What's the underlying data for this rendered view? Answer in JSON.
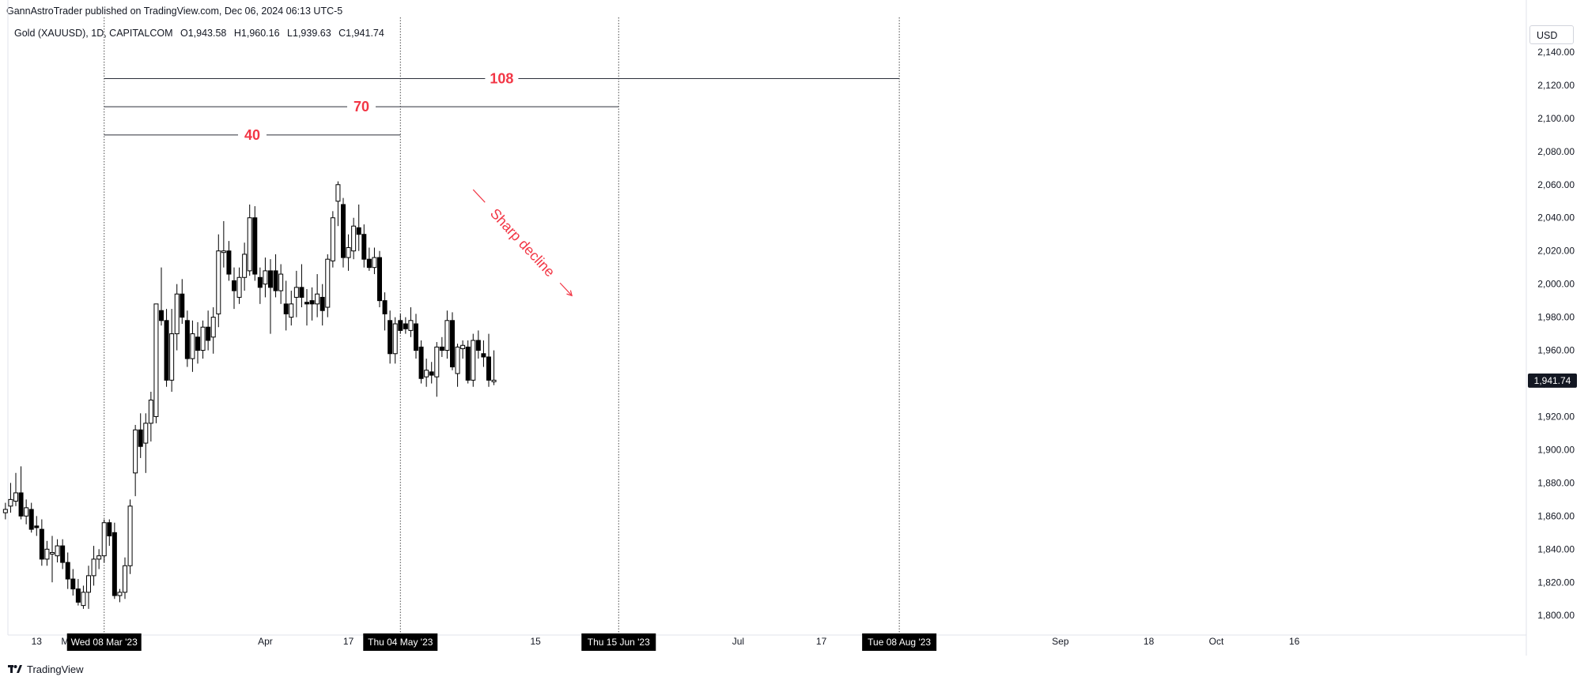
{
  "header": {
    "publish_line": "GannAstroTrader published on TradingView.com, Dec 06, 2024 06:13 UTC-5",
    "symbol": "Gold (XAUUSD), 1D, CAPITALCOM",
    "open": "O1,943.58",
    "high": "H1,960.16",
    "low": "L1,939.63",
    "close": "C1,941.74"
  },
  "currency_label": "USD",
  "brand_label": "TradingView",
  "colors": {
    "up_body": "#ffffff",
    "down_body": "#000000",
    "wick": "#000000",
    "annotation": "#f23645",
    "badge_bg": "#131722",
    "grid_line": "#4a4a4a"
  },
  "chart_data": {
    "type": "candlestick",
    "series_name": "Gold (XAUUSD), 1D, CAPITALCOM",
    "y_axis": {
      "range": [
        1792,
        2160
      ],
      "ticks": [
        1800,
        1820,
        1840,
        1860,
        1880,
        1900,
        1920,
        1940,
        1960,
        1980,
        2000,
        2020,
        2040,
        2060,
        2080,
        2100,
        2120,
        2140
      ],
      "tick_labels": [
        "1,800.00",
        "1,820.00",
        "1,840.00",
        "1,860.00",
        "1,880.00",
        "1,900.00",
        "1,920.00",
        "1,940.00",
        "1,960.00",
        "1,980.00",
        "2,000.00",
        "2,020.00",
        "2,040.00",
        "2,060.00",
        "2,080.00",
        "2,100.00",
        "2,120.00",
        "2,140.00"
      ],
      "last_price_label": "1,941.74",
      "last_price": 1941.74
    },
    "x_axis": {
      "day_range": [
        -17,
        193
      ],
      "tick_labels": [
        {
          "day": -13,
          "label": "13"
        },
        {
          "day": -7,
          "label": "Ma"
        },
        {
          "day": 31,
          "label": "Apr"
        },
        {
          "day": 47,
          "label": "17"
        },
        {
          "day": 83,
          "label": "15"
        },
        {
          "day": 100,
          "label": "Jun"
        },
        {
          "day": 122,
          "label": "Jul"
        },
        {
          "day": 138,
          "label": "17"
        },
        {
          "day": 153,
          "label": "Au"
        },
        {
          "day": 184,
          "label": "Sep"
        },
        {
          "day": 201,
          "label": "18"
        },
        {
          "day": 214,
          "label": "Oct"
        },
        {
          "day": 229,
          "label": "16"
        }
      ],
      "date_badges": [
        {
          "day": 0,
          "label": "Wed 08 Mar '23"
        },
        {
          "day": 57,
          "label": "Thu 04 May '23"
        },
        {
          "day": 99,
          "label": "Thu 15 Jun '23"
        },
        {
          "day": 153,
          "label": "Tue 08 Aug '23"
        }
      ]
    },
    "vertical_lines": [
      0,
      57,
      99,
      153
    ],
    "day_spans": [
      {
        "from": 0,
        "to": 57,
        "price": 2090,
        "label": "40"
      },
      {
        "from": 0,
        "to": 99,
        "price": 2107,
        "label": "70"
      },
      {
        "from": 0,
        "to": 153,
        "price": 2124,
        "label": "108"
      }
    ],
    "annotation": {
      "text": "Sharp decline",
      "start": {
        "day": 71,
        "price": 2057
      },
      "end": {
        "day": 90,
        "price": 1993
      }
    },
    "candles": [
      {
        "d": -19,
        "o": 1862,
        "h": 1868,
        "l": 1858,
        "c": 1864
      },
      {
        "d": -18,
        "o": 1866,
        "h": 1880,
        "l": 1862,
        "c": 1870
      },
      {
        "d": -17,
        "o": 1869,
        "h": 1886,
        "l": 1866,
        "c": 1874
      },
      {
        "d": -16,
        "o": 1874,
        "h": 1890,
        "l": 1858,
        "c": 1860
      },
      {
        "d": -15,
        "o": 1860,
        "h": 1870,
        "l": 1855,
        "c": 1865
      },
      {
        "d": -14,
        "o": 1864,
        "h": 1868,
        "l": 1850,
        "c": 1852
      },
      {
        "d": -13,
        "o": 1854,
        "h": 1860,
        "l": 1848,
        "c": 1853
      },
      {
        "d": -12,
        "o": 1852,
        "h": 1858,
        "l": 1830,
        "c": 1834
      },
      {
        "d": -11,
        "o": 1834,
        "h": 1845,
        "l": 1830,
        "c": 1840
      },
      {
        "d": -10,
        "o": 1838,
        "h": 1848,
        "l": 1820,
        "c": 1838
      },
      {
        "d": -9,
        "o": 1836,
        "h": 1846,
        "l": 1832,
        "c": 1842
      },
      {
        "d": -8,
        "o": 1842,
        "h": 1846,
        "l": 1828,
        "c": 1832
      },
      {
        "d": -7,
        "o": 1832,
        "h": 1838,
        "l": 1816,
        "c": 1822
      },
      {
        "d": -6,
        "o": 1822,
        "h": 1828,
        "l": 1812,
        "c": 1816
      },
      {
        "d": -5,
        "o": 1816,
        "h": 1822,
        "l": 1806,
        "c": 1808
      },
      {
        "d": -4,
        "o": 1806,
        "h": 1818,
        "l": 1804,
        "c": 1814
      },
      {
        "d": -3,
        "o": 1814,
        "h": 1830,
        "l": 1804,
        "c": 1824
      },
      {
        "d": -2,
        "o": 1824,
        "h": 1842,
        "l": 1818,
        "c": 1834
      },
      {
        "d": -1,
        "o": 1834,
        "h": 1840,
        "l": 1828,
        "c": 1836
      },
      {
        "d": 0,
        "o": 1836,
        "h": 1858,
        "l": 1832,
        "c": 1856
      },
      {
        "d": 1,
        "o": 1856,
        "h": 1858,
        "l": 1842,
        "c": 1848
      },
      {
        "d": 2,
        "o": 1850,
        "h": 1856,
        "l": 1810,
        "c": 1812
      },
      {
        "d": 3,
        "o": 1812,
        "h": 1816,
        "l": 1808,
        "c": 1814
      },
      {
        "d": 4,
        "o": 1814,
        "h": 1835,
        "l": 1810,
        "c": 1830
      },
      {
        "d": 5,
        "o": 1830,
        "h": 1870,
        "l": 1825,
        "c": 1866
      },
      {
        "d": 6,
        "o": 1886,
        "h": 1915,
        "l": 1872,
        "c": 1912
      },
      {
        "d": 7,
        "o": 1912,
        "h": 1922,
        "l": 1895,
        "c": 1902
      },
      {
        "d": 8,
        "o": 1904,
        "h": 1922,
        "l": 1886,
        "c": 1916
      },
      {
        "d": 9,
        "o": 1916,
        "h": 1935,
        "l": 1905,
        "c": 1930
      },
      {
        "d": 10,
        "o": 1920,
        "h": 1988,
        "l": 1916,
        "c": 1988
      },
      {
        "d": 11,
        "o": 1984,
        "h": 2010,
        "l": 1975,
        "c": 1978
      },
      {
        "d": 12,
        "o": 1978,
        "h": 1985,
        "l": 1938,
        "c": 1942
      },
      {
        "d": 13,
        "o": 1942,
        "h": 1985,
        "l": 1935,
        "c": 1970
      },
      {
        "d": 14,
        "o": 1970,
        "h": 2000,
        "l": 1960,
        "c": 1994
      },
      {
        "d": 15,
        "o": 1994,
        "h": 2003,
        "l": 1976,
        "c": 1980
      },
      {
        "d": 16,
        "o": 1978,
        "h": 1984,
        "l": 1950,
        "c": 1955
      },
      {
        "d": 17,
        "o": 1955,
        "h": 1978,
        "l": 1947,
        "c": 1970
      },
      {
        "d": 18,
        "o": 1968,
        "h": 1977,
        "l": 1952,
        "c": 1960
      },
      {
        "d": 19,
        "o": 1960,
        "h": 1978,
        "l": 1955,
        "c": 1974
      },
      {
        "d": 20,
        "o": 1974,
        "h": 1984,
        "l": 1960,
        "c": 1966
      },
      {
        "d": 21,
        "o": 1968,
        "h": 1986,
        "l": 1958,
        "c": 1980
      },
      {
        "d": 22,
        "o": 1982,
        "h": 2030,
        "l": 1974,
        "c": 2020
      },
      {
        "d": 23,
        "o": 2020,
        "h": 2038,
        "l": 2010,
        "c": 2020
      },
      {
        "d": 24,
        "o": 2020,
        "h": 2026,
        "l": 2002,
        "c": 2006
      },
      {
        "d": 25,
        "o": 2002,
        "h": 2010,
        "l": 1985,
        "c": 1996
      },
      {
        "d": 26,
        "o": 1992,
        "h": 2010,
        "l": 1988,
        "c": 2004
      },
      {
        "d": 27,
        "o": 2004,
        "h": 2025,
        "l": 1996,
        "c": 2018
      },
      {
        "d": 28,
        "o": 2008,
        "h": 2048,
        "l": 2005,
        "c": 2040
      },
      {
        "d": 29,
        "o": 2040,
        "h": 2047,
        "l": 2002,
        "c": 2006
      },
      {
        "d": 30,
        "o": 2004,
        "h": 2010,
        "l": 1988,
        "c": 1998
      },
      {
        "d": 31,
        "o": 2000,
        "h": 2016,
        "l": 1992,
        "c": 2008
      },
      {
        "d": 32,
        "o": 2008,
        "h": 2015,
        "l": 1970,
        "c": 1998
      },
      {
        "d": 33,
        "o": 2008,
        "h": 2018,
        "l": 1992,
        "c": 1996
      },
      {
        "d": 34,
        "o": 1996,
        "h": 2012,
        "l": 1988,
        "c": 2006
      },
      {
        "d": 35,
        "o": 1988,
        "h": 2002,
        "l": 1972,
        "c": 1982
      },
      {
        "d": 36,
        "o": 1980,
        "h": 1996,
        "l": 1975,
        "c": 1988
      },
      {
        "d": 37,
        "o": 1992,
        "h": 2008,
        "l": 1980,
        "c": 1998
      },
      {
        "d": 38,
        "o": 1998,
        "h": 2012,
        "l": 1986,
        "c": 1992
      },
      {
        "d": 39,
        "o": 1989,
        "h": 1997,
        "l": 1975,
        "c": 1988
      },
      {
        "d": 40,
        "o": 1990,
        "h": 1998,
        "l": 1978,
        "c": 1988
      },
      {
        "d": 41,
        "o": 1988,
        "h": 2006,
        "l": 1980,
        "c": 1994
      },
      {
        "d": 42,
        "o": 1992,
        "h": 2000,
        "l": 1975,
        "c": 1984
      },
      {
        "d": 43,
        "o": 1986,
        "h": 2018,
        "l": 1980,
        "c": 2015
      },
      {
        "d": 44,
        "o": 2014,
        "h": 2044,
        "l": 2010,
        "c": 2040
      },
      {
        "d": 45,
        "o": 2050,
        "h": 2062,
        "l": 2035,
        "c": 2060
      },
      {
        "d": 46,
        "o": 2048,
        "h": 2052,
        "l": 2010,
        "c": 2016
      },
      {
        "d": 47,
        "o": 2016,
        "h": 2030,
        "l": 2008,
        "c": 2022
      },
      {
        "d": 48,
        "o": 2020,
        "h": 2040,
        "l": 2015,
        "c": 2035
      },
      {
        "d": 49,
        "o": 2034,
        "h": 2048,
        "l": 2020,
        "c": 2030
      },
      {
        "d": 50,
        "o": 2030,
        "h": 2036,
        "l": 2010,
        "c": 2015
      },
      {
        "d": 51,
        "o": 2015,
        "h": 2022,
        "l": 2008,
        "c": 2010
      },
      {
        "d": 52,
        "o": 2010,
        "h": 2022,
        "l": 2006,
        "c": 2016
      },
      {
        "d": 53,
        "o": 2016,
        "h": 2020,
        "l": 1986,
        "c": 1990
      },
      {
        "d": 54,
        "o": 1990,
        "h": 1995,
        "l": 1972,
        "c": 1982
      },
      {
        "d": 55,
        "o": 1978,
        "h": 1984,
        "l": 1952,
        "c": 1958
      },
      {
        "d": 56,
        "o": 1958,
        "h": 1980,
        "l": 1952,
        "c": 1976
      },
      {
        "d": 57,
        "o": 1978,
        "h": 1982,
        "l": 1970,
        "c": 1972
      },
      {
        "d": 58,
        "o": 1976,
        "h": 1980,
        "l": 1970,
        "c": 1973
      },
      {
        "d": 59,
        "o": 1972,
        "h": 1986,
        "l": 1968,
        "c": 1978
      },
      {
        "d": 60,
        "o": 1976,
        "h": 1982,
        "l": 1955,
        "c": 1960
      },
      {
        "d": 61,
        "o": 1962,
        "h": 1966,
        "l": 1940,
        "c": 1943
      },
      {
        "d": 62,
        "o": 1944,
        "h": 1955,
        "l": 1938,
        "c": 1948
      },
      {
        "d": 63,
        "o": 1947,
        "h": 1953,
        "l": 1940,
        "c": 1945
      },
      {
        "d": 64,
        "o": 1944,
        "h": 1965,
        "l": 1932,
        "c": 1962
      },
      {
        "d": 65,
        "o": 1962,
        "h": 1968,
        "l": 1956,
        "c": 1960
      },
      {
        "d": 66,
        "o": 1960,
        "h": 1984,
        "l": 1955,
        "c": 1978
      },
      {
        "d": 67,
        "o": 1978,
        "h": 1983,
        "l": 1948,
        "c": 1950
      },
      {
        "d": 68,
        "o": 1946,
        "h": 1964,
        "l": 1938,
        "c": 1962
      },
      {
        "d": 69,
        "o": 1961,
        "h": 1966,
        "l": 1955,
        "c": 1963
      },
      {
        "d": 70,
        "o": 1962,
        "h": 1966,
        "l": 1940,
        "c": 1942
      },
      {
        "d": 71,
        "o": 1942,
        "h": 1970,
        "l": 1938,
        "c": 1966
      },
      {
        "d": 72,
        "o": 1966,
        "h": 1972,
        "l": 1955,
        "c": 1960
      },
      {
        "d": 73,
        "o": 1958,
        "h": 1966,
        "l": 1950,
        "c": 1956
      },
      {
        "d": 74,
        "o": 1956,
        "h": 1970,
        "l": 1938,
        "c": 1942
      },
      {
        "d": 75,
        "o": 1942,
        "h": 1960,
        "l": 1939,
        "c": 1942
      }
    ]
  }
}
